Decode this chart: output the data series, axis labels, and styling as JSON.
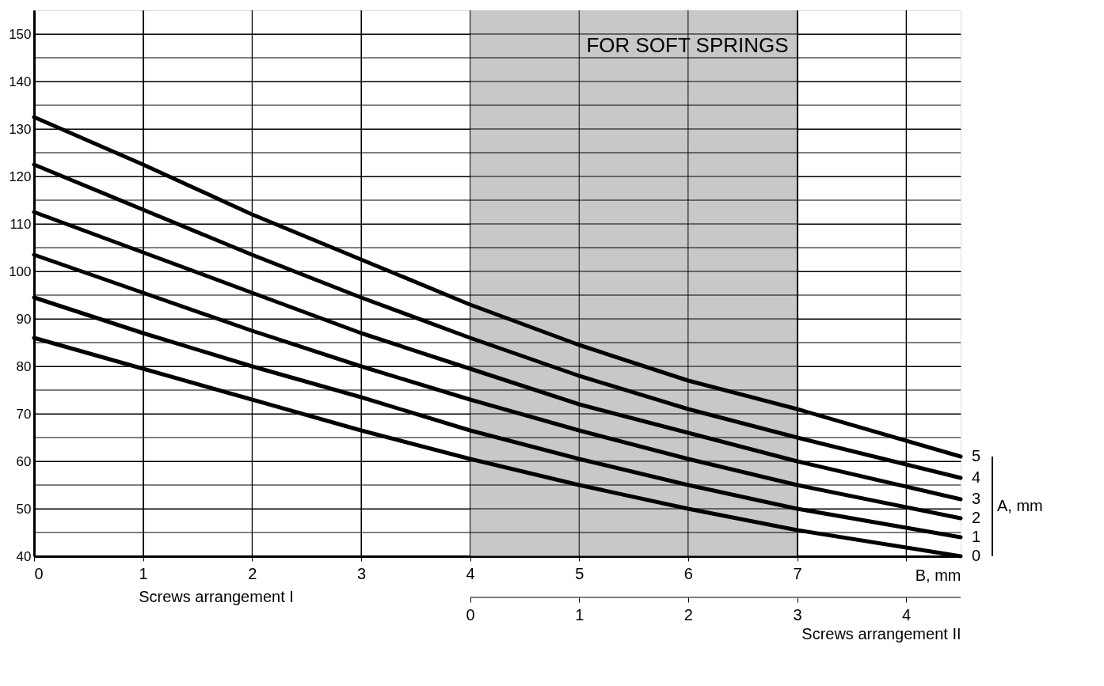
{
  "chart_data": {
    "type": "line",
    "title": "FOR SOFT SPRINGS",
    "xlabel": "B, mm",
    "x2label": "Screws arrangement II",
    "legend_title": "A, mm",
    "annotations": [
      "Screws arrangement I"
    ],
    "x": [
      0,
      1,
      2,
      3,
      4,
      5,
      6,
      7,
      8.5
    ],
    "series": [
      {
        "name": "5",
        "color": "#000000",
        "values": [
          132.5,
          122.5,
          112,
          102.5,
          93,
          84.5,
          77,
          71,
          61
        ]
      },
      {
        "name": "4",
        "color": "#000000",
        "values": [
          122.5,
          113,
          103.5,
          94.5,
          86,
          78,
          71,
          65,
          56.5
        ]
      },
      {
        "name": "3",
        "color": "#000000",
        "values": [
          112.5,
          104,
          95.5,
          87,
          79.5,
          72,
          66,
          60,
          52
        ]
      },
      {
        "name": "2",
        "color": "#000000",
        "values": [
          103.5,
          95.5,
          87.5,
          80,
          73,
          66.5,
          60.5,
          55,
          48
        ]
      },
      {
        "name": "1",
        "color": "#000000",
        "values": [
          94.5,
          87,
          80,
          73.5,
          66.5,
          60.5,
          55,
          50,
          44
        ]
      },
      {
        "name": "0",
        "color": "#000000",
        "values": [
          86,
          79.5,
          73,
          66.5,
          60.5,
          55,
          50,
          45.5,
          40
        ]
      }
    ],
    "xlim": [
      0,
      8.5
    ],
    "xticks": [
      0,
      1,
      2,
      3,
      4,
      5,
      6,
      7,
      {
        "value": 8,
        "label": null
      }
    ],
    "x2lim": [
      -4,
      4.5
    ],
    "x2ticks": [
      0,
      1,
      2,
      3,
      4
    ],
    "ylim": [
      40,
      155
    ],
    "yticks": [
      40,
      {
        "value": 45,
        "label": null
      },
      50,
      {
        "value": 55,
        "label": null
      },
      60,
      {
        "value": 65,
        "label": null
      },
      70,
      {
        "value": 75,
        "label": null
      },
      80,
      {
        "value": 85,
        "label": null
      },
      90,
      {
        "value": 95,
        "label": null
      },
      100,
      {
        "value": 105,
        "label": null
      },
      110,
      {
        "value": 115,
        "label": null
      },
      120,
      {
        "value": 125,
        "label": null
      },
      130,
      {
        "value": 135,
        "label": null
      },
      140,
      {
        "value": 145,
        "label": null
      },
      150
    ],
    "bands": [
      {
        "axis": "x",
        "from": 4,
        "to": 7,
        "color": "#c8c8c8"
      }
    ],
    "grid": true,
    "marker": "none",
    "line_style": "solid"
  }
}
